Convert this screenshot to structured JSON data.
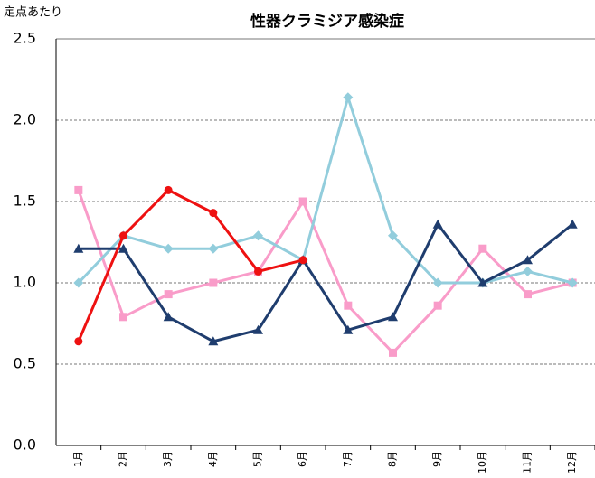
{
  "chart_data": {
    "type": "line",
    "title": "性器クラミジア感染症",
    "y_label": "定点あたり",
    "categories": [
      "1月",
      "2月",
      "3月",
      "4月",
      "5月",
      "6月",
      "7月",
      "8月",
      "9月",
      "10月",
      "11月",
      "12月"
    ],
    "series": [
      {
        "color": "#f99cc9",
        "marker": "square",
        "values": [
          1.57,
          0.79,
          0.93,
          1.0,
          1.07,
          1.5,
          0.86,
          0.57,
          0.86,
          1.21,
          0.93,
          1.0
        ]
      },
      {
        "color": "#92cddc",
        "marker": "diamond",
        "values": [
          1.0,
          1.29,
          1.21,
          1.21,
          1.29,
          1.14,
          2.14,
          1.29,
          1.0,
          1.0,
          1.07,
          1.0
        ]
      },
      {
        "color": "#1f3d6e",
        "marker": "triangle",
        "values": [
          1.21,
          1.21,
          0.79,
          0.64,
          0.71,
          1.14,
          0.71,
          0.79,
          1.36,
          1.0,
          1.14,
          1.36
        ]
      },
      {
        "color": "#ee1111",
        "marker": "circle",
        "values": [
          0.64,
          1.29,
          1.57,
          1.43,
          1.07,
          1.14,
          null,
          null,
          null,
          null,
          null,
          null
        ]
      }
    ],
    "ylim": [
      0,
      2.5
    ],
    "yticks": [
      {
        "value": 0,
        "label": "0.0"
      },
      {
        "value": 0.5,
        "label": "0.5"
      },
      {
        "value": 1,
        "label": "1.0"
      },
      {
        "value": 1.5,
        "label": "1.5"
      },
      {
        "value": 2,
        "label": "2.0"
      },
      {
        "value": 2.5,
        "label": "2.5"
      }
    ],
    "grid": true
  }
}
